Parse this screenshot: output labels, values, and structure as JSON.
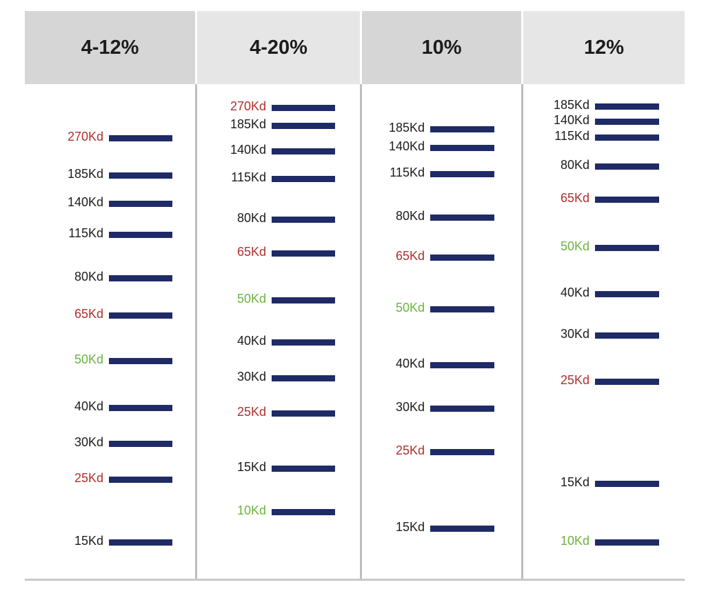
{
  "colors": {
    "header_bg_a": "#d6d6d6",
    "header_bg_b": "#e6e6e6",
    "band": "#1f2b66",
    "label_black": "#1c1c1c",
    "label_red": "#b0302c",
    "label_green": "#6cb33f"
  },
  "lanes": [
    {
      "header": "4-12%",
      "markers": [
        {
          "label": "270Kd",
          "color": "red"
        },
        {
          "label": "185Kd",
          "color": "black"
        },
        {
          "label": "140Kd",
          "color": "black"
        },
        {
          "label": "115Kd",
          "color": "black"
        },
        {
          "label": "80Kd",
          "color": "black"
        },
        {
          "label": "65Kd",
          "color": "red"
        },
        {
          "label": "50Kd",
          "color": "green"
        },
        {
          "label": "40Kd",
          "color": "black"
        },
        {
          "label": "30Kd",
          "color": "black"
        },
        {
          "label": "25Kd",
          "color": "red"
        },
        {
          "label": "15Kd",
          "color": "black"
        }
      ]
    },
    {
      "header": "4-20%",
      "markers": [
        {
          "label": "270Kd",
          "color": "red"
        },
        {
          "label": "185Kd",
          "color": "black"
        },
        {
          "label": "140Kd",
          "color": "black"
        },
        {
          "label": "115Kd",
          "color": "black"
        },
        {
          "label": "80Kd",
          "color": "black"
        },
        {
          "label": "65Kd",
          "color": "red"
        },
        {
          "label": "50Kd",
          "color": "green"
        },
        {
          "label": "40Kd",
          "color": "black"
        },
        {
          "label": "30Kd",
          "color": "black"
        },
        {
          "label": "25Kd",
          "color": "red"
        },
        {
          "label": "15Kd",
          "color": "black"
        },
        {
          "label": "10Kd",
          "color": "green"
        }
      ]
    },
    {
      "header": "10%",
      "markers": [
        {
          "label": "185Kd",
          "color": "black"
        },
        {
          "label": "140Kd",
          "color": "black"
        },
        {
          "label": "115Kd",
          "color": "black"
        },
        {
          "label": "80Kd",
          "color": "black"
        },
        {
          "label": "65Kd",
          "color": "red"
        },
        {
          "label": "50Kd",
          "color": "green"
        },
        {
          "label": "40Kd",
          "color": "black"
        },
        {
          "label": "30Kd",
          "color": "black"
        },
        {
          "label": "25Kd",
          "color": "red"
        },
        {
          "label": "15Kd",
          "color": "black"
        }
      ]
    },
    {
      "header": "12%",
      "markers": [
        {
          "label": "185Kd",
          "color": "black"
        },
        {
          "label": "140Kd",
          "color": "black"
        },
        {
          "label": "115Kd",
          "color": "black"
        },
        {
          "label": "80Kd",
          "color": "black"
        },
        {
          "label": "65Kd",
          "color": "red"
        },
        {
          "label": "50Kd",
          "color": "green"
        },
        {
          "label": "40Kd",
          "color": "black"
        },
        {
          "label": "30Kd",
          "color": "black"
        },
        {
          "label": "25Kd",
          "color": "red"
        },
        {
          "label": "15Kd",
          "color": "black"
        },
        {
          "label": "10Kd",
          "color": "green"
        }
      ]
    }
  ]
}
